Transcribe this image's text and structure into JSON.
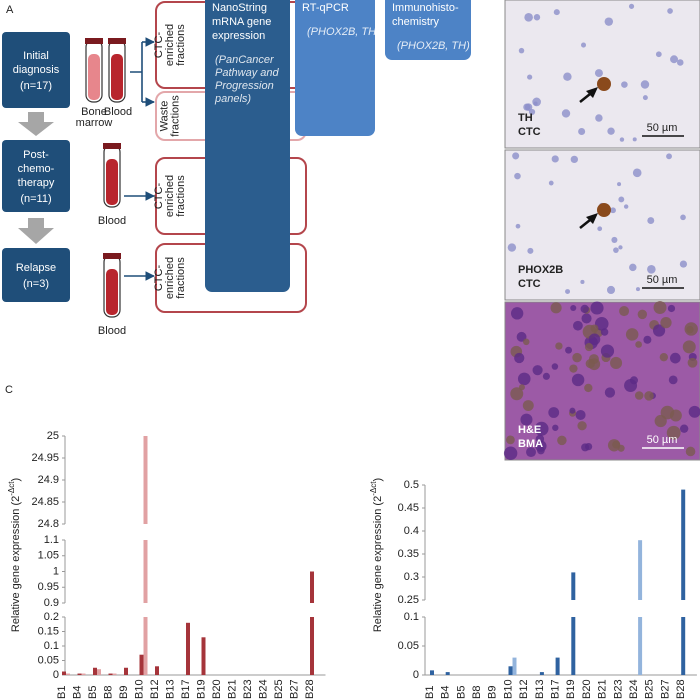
{
  "panel_a": {
    "label": "A",
    "stages": [
      {
        "lines": [
          "Initial",
          "diagnosis"
        ],
        "n": "(n=17)"
      },
      {
        "lines": [
          "Post-",
          "chemo-",
          "therapy"
        ],
        "n": "(n=11)"
      },
      {
        "lines": [
          "Relapse"
        ],
        "n": "(n=3)"
      }
    ],
    "samples": [
      [
        "Bone",
        "marrow"
      ],
      [
        "Blood"
      ],
      [
        "Blood"
      ],
      [
        "Blood"
      ]
    ],
    "fractions": [
      [
        "CTC-",
        "enriched",
        "fractions"
      ],
      [
        "Waste",
        "fractions"
      ],
      [
        "CTC-",
        "enriched",
        "fractions"
      ],
      [
        "CTC-",
        "enriched",
        "fractions"
      ]
    ],
    "methods": [
      {
        "title": [
          "NanoString",
          "mRNA gene",
          "expression"
        ],
        "detail": [
          "(PanCancer",
          "Pathway and",
          "Progression",
          "panels)"
        ]
      },
      {
        "title": [
          "RT-qPCR"
        ],
        "detail": [
          "(PHOX2B, TH)"
        ]
      },
      {
        "title": [
          "Immunohisto-",
          "chemistry"
        ],
        "detail": [
          "(PHOX2B, TH)"
        ]
      }
    ]
  },
  "micrographs": [
    {
      "label": [
        "TH",
        "CTC"
      ],
      "scale": "50 µm"
    },
    {
      "label": [
        "PHOX2B",
        "CTC"
      ],
      "scale": "50 µm"
    },
    {
      "label": [
        "H&E",
        "BMA"
      ],
      "scale": "50 µm"
    }
  ],
  "panel_c": {
    "label": "C"
  },
  "chart_data": [
    {
      "type": "bar",
      "y_label": {
        "text": "Relative gene expression (2",
        "superscript": "-Δct",
        "close": ")"
      },
      "categories": [
        "B1",
        "B4",
        "B5",
        "B8",
        "B9",
        "B10",
        "B12",
        "B13",
        "B17",
        "B19",
        "B20",
        "B21",
        "B23",
        "B24",
        "B25",
        "B27",
        "B28"
      ],
      "series": [
        {
          "color": "#a5343a",
          "values": [
            0.012,
            0.005,
            0.025,
            0.005,
            0.025,
            0.07,
            0.03,
            0,
            0.18,
            0.13,
            0,
            0,
            0,
            0,
            0,
            0,
            1.0
          ]
        },
        {
          "color": "#e1a1a3",
          "values": [
            0.005,
            0.005,
            0.02,
            0.005,
            0,
            25,
            0,
            0,
            0,
            0,
            0,
            0,
            0,
            0,
            0,
            0,
            0
          ]
        }
      ],
      "axis_segments": [
        {
          "ylim": [
            0,
            0.2
          ],
          "yticks": [
            0,
            0.05,
            0.1,
            0.15,
            0.2
          ]
        },
        {
          "ylim": [
            0.9,
            1.1
          ],
          "yticks": [
            0.9,
            0.95,
            1,
            1.05,
            1.1
          ]
        },
        {
          "ylim": [
            24.8,
            25
          ],
          "yticks": [
            24.8,
            24.85,
            24.9,
            24.95,
            25
          ]
        }
      ]
    },
    {
      "type": "bar",
      "y_label": {
        "text": "Relative gene expression (2",
        "superscript": "-Δct",
        "close": ")"
      },
      "categories": [
        "B1",
        "B4",
        "B5",
        "B8",
        "B9",
        "B10",
        "B12",
        "B13",
        "B17",
        "B19",
        "B20",
        "B21",
        "B23",
        "B24",
        "B25",
        "B27",
        "B28"
      ],
      "series": [
        {
          "color": "#2f62a0",
          "values": [
            0.008,
            0.005,
            0,
            0,
            0,
            0.015,
            0,
            0.005,
            0.03,
            0.31,
            0,
            0,
            0,
            0,
            0,
            0,
            0.49
          ]
        },
        {
          "color": "#93b4dc",
          "values": [
            0,
            0,
            0,
            0,
            0,
            0.03,
            0,
            0,
            0,
            0,
            0,
            0,
            0,
            0.38,
            0,
            0,
            0
          ]
        }
      ],
      "axis_segments": [
        {
          "ylim": [
            0,
            0.1
          ],
          "yticks": [
            0,
            0.05,
            0.1
          ]
        },
        {
          "ylim": [
            0.25,
            0.5
          ],
          "yticks": [
            0.25,
            0.3,
            0.35,
            0.4,
            0.45,
            0.5
          ]
        }
      ]
    }
  ]
}
